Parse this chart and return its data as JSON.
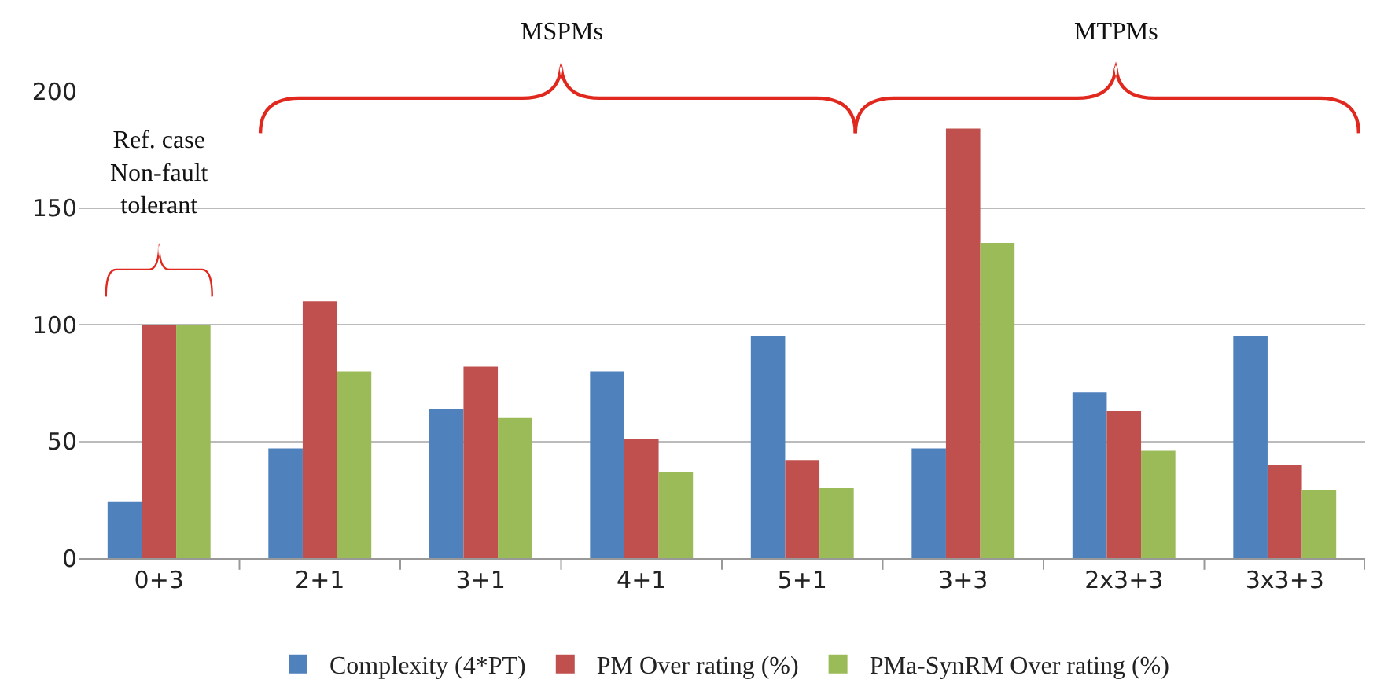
{
  "chart_data": {
    "type": "bar",
    "categories": [
      "0+3",
      "2+1",
      "3+1",
      "4+1",
      "5+1",
      "3+3",
      "2x3+3",
      "3x3+3"
    ],
    "series": [
      {
        "name": "Complexity (4*PT)",
        "color": "#4f81bd",
        "values": [
          24,
          47,
          64,
          80,
          95,
          47,
          71,
          95
        ]
      },
      {
        "name": "PM Over rating (%)",
        "color": "#c0504d",
        "values": [
          100,
          110,
          82,
          51,
          42,
          184,
          63,
          40
        ]
      },
      {
        "name": "PMa-SynRM Over rating (%)",
        "color": "#9bbb59",
        "values": [
          100,
          80,
          60,
          37,
          30,
          135,
          46,
          29
        ]
      }
    ],
    "ylim": [
      0,
      200
    ],
    "yticks": [
      0,
      50,
      100,
      150,
      200
    ],
    "grid": "y",
    "legend": "bottom",
    "annotations": [
      "Ref. case\nNon-fault\ntolerant",
      "MSPMs",
      "MTPMs"
    ]
  }
}
